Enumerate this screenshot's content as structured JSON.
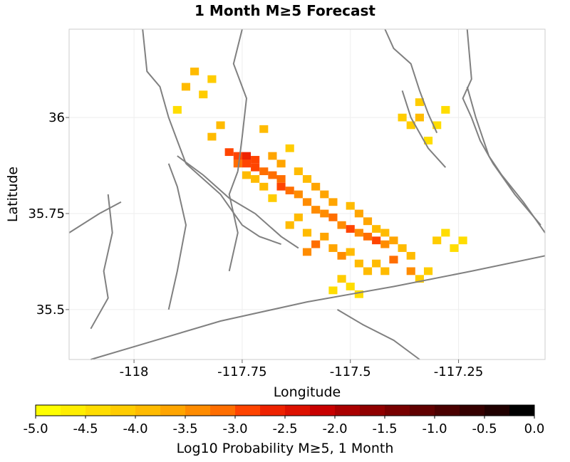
{
  "chart_data": {
    "type": "heatmap",
    "title": "1 Month M≥5 Forecast",
    "xlabel": "Longitude",
    "ylabel": "Latitude",
    "xlim": [
      -118.15,
      -117.05
    ],
    "ylim": [
      35.37,
      36.23
    ],
    "x_ticks": [
      {
        "value": -118,
        "label": "-118"
      },
      {
        "value": -117.75,
        "label": "-117.75"
      },
      {
        "value": -117.5,
        "label": "-117.5"
      },
      {
        "value": -117.25,
        "label": "-117.25"
      }
    ],
    "y_ticks": [
      {
        "value": 36,
        "label": "36"
      },
      {
        "value": 35.75,
        "label": "35.75"
      },
      {
        "value": 35.5,
        "label": "35.5"
      }
    ],
    "colorbar": {
      "label": "Log10 Probability M≥5, 1 Month",
      "min": -5.0,
      "max": 0.0,
      "tick_labels": [
        "-5.0",
        "-4.5",
        "-4.0",
        "-3.5",
        "-3.0",
        "-2.5",
        "-2.0",
        "-1.5",
        "-1.0",
        "-0.5",
        "0.0"
      ],
      "colors": [
        "#ffff00",
        "#ffee00",
        "#ffdd00",
        "#ffcc00",
        "#ffbb00",
        "#ffa500",
        "#ff8c00",
        "#ff6e00",
        "#ff4400",
        "#ee2200",
        "#dd1100",
        "#c80000",
        "#aa0000",
        "#900000",
        "#780000",
        "#600000",
        "#4a0000",
        "#350000",
        "#200000",
        "#000000"
      ]
    },
    "cell_size_deg": 0.02,
    "cells_note": "approximate gridded log10 probability values (lon, lat, value)",
    "cells": [
      [
        -117.78,
        35.91,
        -2.9
      ],
      [
        -117.76,
        35.9,
        -2.8
      ],
      [
        -117.74,
        35.9,
        -2.6
      ],
      [
        -117.72,
        35.89,
        -2.8
      ],
      [
        -117.76,
        35.88,
        -3.1
      ],
      [
        -117.74,
        35.88,
        -3.0
      ],
      [
        -117.72,
        35.87,
        -3.0
      ],
      [
        -117.7,
        35.86,
        -3.2
      ],
      [
        -117.68,
        35.85,
        -3.1
      ],
      [
        -117.66,
        35.84,
        -3.2
      ],
      [
        -117.66,
        35.82,
        -3.0
      ],
      [
        -117.64,
        35.81,
        -3.2
      ],
      [
        -117.62,
        35.8,
        -3.3
      ],
      [
        -117.6,
        35.78,
        -3.4
      ],
      [
        -117.58,
        35.76,
        -3.3
      ],
      [
        -117.56,
        35.75,
        -3.4
      ],
      [
        -117.54,
        35.74,
        -3.2
      ],
      [
        -117.52,
        35.72,
        -3.4
      ],
      [
        -117.5,
        35.71,
        -3.0
      ],
      [
        -117.48,
        35.7,
        -3.3
      ],
      [
        -117.46,
        35.69,
        -3.2
      ],
      [
        -117.44,
        35.68,
        -3.0
      ],
      [
        -117.42,
        35.67,
        -3.3
      ],
      [
        -117.58,
        35.67,
        -3.1
      ],
      [
        -117.6,
        35.65,
        -3.3
      ],
      [
        -117.52,
        35.64,
        -3.4
      ],
      [
        -117.4,
        35.63,
        -3.2
      ],
      [
        -117.36,
        35.6,
        -3.4
      ],
      [
        -117.8,
        35.98,
        -4.0
      ],
      [
        -117.82,
        35.95,
        -3.9
      ],
      [
        -117.7,
        35.97,
        -3.8
      ],
      [
        -117.64,
        35.92,
        -4.2
      ],
      [
        -117.86,
        36.12,
        -4.0
      ],
      [
        -117.88,
        36.08,
        -3.9
      ],
      [
        -117.84,
        36.06,
        -4.1
      ],
      [
        -117.9,
        36.02,
        -4.3
      ],
      [
        -117.82,
        36.1,
        -4.2
      ],
      [
        -117.68,
        35.9,
        -3.7
      ],
      [
        -117.66,
        35.88,
        -3.6
      ],
      [
        -117.62,
        35.86,
        -3.9
      ],
      [
        -117.6,
        35.84,
        -3.8
      ],
      [
        -117.58,
        35.82,
        -3.7
      ],
      [
        -117.56,
        35.8,
        -3.6
      ],
      [
        -117.54,
        35.78,
        -3.7
      ],
      [
        -117.5,
        35.77,
        -3.8
      ],
      [
        -117.48,
        35.75,
        -3.7
      ],
      [
        -117.46,
        35.73,
        -3.6
      ],
      [
        -117.44,
        35.71,
        -3.8
      ],
      [
        -117.42,
        35.7,
        -3.9
      ],
      [
        -117.4,
        35.68,
        -3.7
      ],
      [
        -117.38,
        35.66,
        -3.8
      ],
      [
        -117.36,
        35.64,
        -3.9
      ],
      [
        -117.62,
        35.74,
        -3.9
      ],
      [
        -117.64,
        35.72,
        -4.0
      ],
      [
        -117.6,
        35.7,
        -3.8
      ],
      [
        -117.56,
        35.69,
        -3.7
      ],
      [
        -117.54,
        35.66,
        -3.6
      ],
      [
        -117.5,
        35.65,
        -3.8
      ],
      [
        -117.48,
        35.62,
        -3.9
      ],
      [
        -117.46,
        35.6,
        -4.0
      ],
      [
        -117.44,
        35.62,
        -3.8
      ],
      [
        -117.42,
        35.6,
        -3.9
      ],
      [
        -117.34,
        35.58,
        -4.1
      ],
      [
        -117.32,
        35.6,
        -4.2
      ],
      [
        -117.7,
        35.82,
        -3.9
      ],
      [
        -117.72,
        35.84,
        -3.8
      ],
      [
        -117.74,
        35.85,
        -4.0
      ],
      [
        -117.68,
        35.79,
        -4.1
      ],
      [
        -117.38,
        36.0,
        -4.1
      ],
      [
        -117.36,
        35.98,
        -4.2
      ],
      [
        -117.34,
        36.0,
        -4.0
      ],
      [
        -117.3,
        35.98,
        -4.3
      ],
      [
        -117.34,
        36.04,
        -4.2
      ],
      [
        -117.28,
        36.02,
        -4.4
      ],
      [
        -117.32,
        35.94,
        -4.4
      ],
      [
        -117.3,
        35.68,
        -4.2
      ],
      [
        -117.28,
        35.7,
        -4.3
      ],
      [
        -117.26,
        35.66,
        -4.4
      ],
      [
        -117.24,
        35.68,
        -4.5
      ],
      [
        -117.52,
        35.58,
        -4.2
      ],
      [
        -117.5,
        35.56,
        -4.3
      ],
      [
        -117.54,
        35.55,
        -4.4
      ],
      [
        -117.48,
        35.54,
        -4.5
      ]
    ],
    "fault_lines_note": "approximate fault traces in lon/lat",
    "faults": [
      [
        [
          -117.98,
          36.23
        ],
        [
          -117.97,
          36.12
        ],
        [
          -117.94,
          36.08
        ],
        [
          -117.92,
          36.0
        ],
        [
          -117.9,
          35.94
        ],
        [
          -117.88,
          35.88
        ]
      ],
      [
        [
          -117.92,
          35.88
        ],
        [
          -117.9,
          35.82
        ],
        [
          -117.88,
          35.72
        ],
        [
          -117.9,
          35.6
        ],
        [
          -117.92,
          35.5
        ]
      ],
      [
        [
          -117.9,
          35.9
        ],
        [
          -117.84,
          35.85
        ],
        [
          -117.78,
          35.79
        ],
        [
          -117.72,
          35.75
        ],
        [
          -117.66,
          35.69
        ],
        [
          -117.62,
          35.66
        ]
      ],
      [
        [
          -117.88,
          35.88
        ],
        [
          -117.8,
          35.8
        ],
        [
          -117.75,
          35.72
        ],
        [
          -117.71,
          35.69
        ],
        [
          -117.66,
          35.67
        ]
      ],
      [
        [
          -117.75,
          36.23
        ],
        [
          -117.77,
          36.14
        ],
        [
          -117.74,
          36.05
        ],
        [
          -117.75,
          35.95
        ],
        [
          -117.76,
          35.86
        ]
      ],
      [
        [
          -117.76,
          35.86
        ],
        [
          -117.78,
          35.8
        ],
        [
          -117.76,
          35.7
        ],
        [
          -117.78,
          35.6
        ]
      ],
      [
        [
          -117.42,
          36.23
        ],
        [
          -117.4,
          36.18
        ],
        [
          -117.36,
          36.14
        ],
        [
          -117.34,
          36.07
        ],
        [
          -117.32,
          36.01
        ],
        [
          -117.3,
          35.96
        ]
      ],
      [
        [
          -117.23,
          36.23
        ],
        [
          -117.22,
          36.1
        ],
        [
          -117.24,
          36.05
        ],
        [
          -117.22,
          36.0
        ],
        [
          -117.2,
          35.94
        ],
        [
          -117.17,
          35.88
        ],
        [
          -117.12,
          35.8
        ],
        [
          -117.06,
          35.72
        ]
      ],
      [
        [
          -117.23,
          36.08
        ],
        [
          -117.21,
          36.0
        ],
        [
          -117.18,
          35.9
        ],
        [
          -117.15,
          35.85
        ],
        [
          -117.1,
          35.78
        ],
        [
          -117.05,
          35.7
        ]
      ],
      [
        [
          -118.1,
          35.37
        ],
        [
          -117.98,
          35.41
        ],
        [
          -117.8,
          35.47
        ],
        [
          -117.6,
          35.52
        ],
        [
          -117.4,
          35.56
        ],
        [
          -117.22,
          35.6
        ],
        [
          -117.05,
          35.64
        ]
      ],
      [
        [
          -117.53,
          35.5
        ],
        [
          -117.47,
          35.46
        ],
        [
          -117.4,
          35.42
        ],
        [
          -117.34,
          35.37
        ]
      ],
      [
        [
          -118.1,
          35.45
        ],
        [
          -118.06,
          35.53
        ],
        [
          -118.07,
          35.6
        ],
        [
          -118.05,
          35.7
        ],
        [
          -118.06,
          35.8
        ]
      ],
      [
        [
          -118.15,
          35.7
        ],
        [
          -118.08,
          35.75
        ],
        [
          -118.03,
          35.78
        ]
      ],
      [
        [
          -117.38,
          36.07
        ],
        [
          -117.36,
          36.0
        ],
        [
          -117.32,
          35.92
        ],
        [
          -117.28,
          35.87
        ]
      ]
    ]
  }
}
